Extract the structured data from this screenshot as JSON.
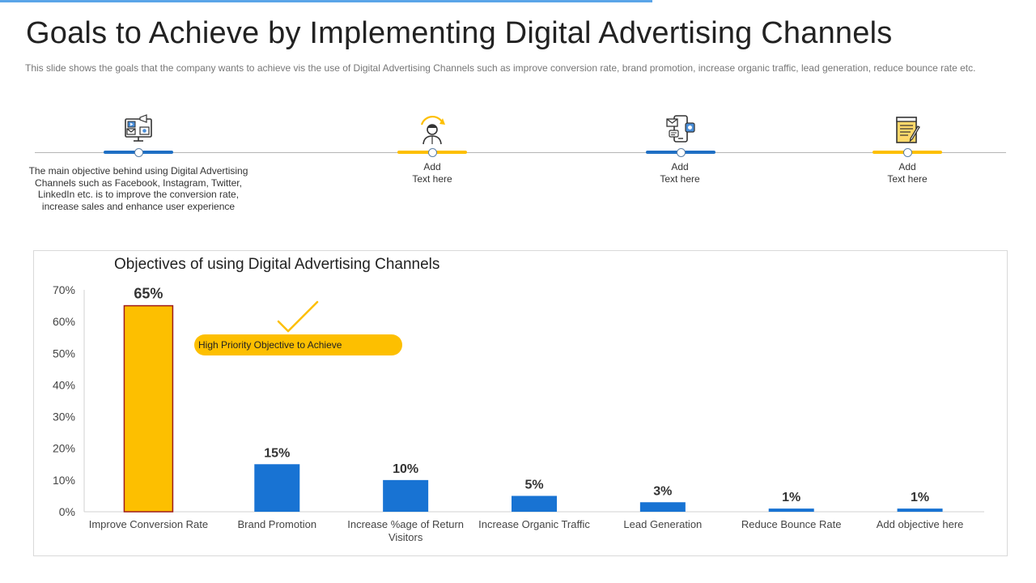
{
  "page": {
    "title": "Goals to Achieve by Implementing Digital Advertising Channels",
    "subtitle": "This slide shows the goals that the company wants to achieve vis the use of Digital Advertising Channels such as improve conversion rate, brand promotion, increase organic traffic, lead generation, reduce bounce rate etc."
  },
  "timeline": {
    "items": [
      {
        "icon": "marketing-channels-icon",
        "accent": "#1f6fc4",
        "lines": [
          "The main objective behind using Digital Advertising",
          "Channels such as Facebook, Instagram, Twitter,",
          "LinkedIn etc. is to improve the conversion rate,",
          "increase sales and enhance user experience"
        ]
      },
      {
        "icon": "person-refresh-icon",
        "accent": "#fdbf00",
        "lines": [
          "Add",
          "Text here"
        ]
      },
      {
        "icon": "mobile-message-icon",
        "accent": "#1f6fc4",
        "lines": [
          "Add",
          "Text here"
        ]
      },
      {
        "icon": "notepad-pen-icon",
        "accent": "#fdbf00",
        "lines": [
          "Add",
          "Text here"
        ]
      }
    ]
  },
  "callout": {
    "label": "High Priority Objective to Achieve"
  },
  "colors": {
    "highlight": "#fdbf00",
    "bar": "#1873d3",
    "outline": "#9e1b1b"
  },
  "chart_data": {
    "type": "bar",
    "title": "Objectives of using Digital Advertising Channels",
    "categories": [
      "Improve Conversion Rate",
      "Brand Promotion",
      "Increase %age of Return Visitors",
      "Increase Organic Traffic",
      "Lead Generation",
      "Reduce Bounce Rate",
      "Add objective here"
    ],
    "category_label_lines": [
      [
        "Improve Conversion Rate"
      ],
      [
        "Brand Promotion"
      ],
      [
        "Increase %age of Return",
        "Visitors"
      ],
      [
        "Increase Organic Traffic"
      ],
      [
        "Lead Generation"
      ],
      [
        "Reduce Bounce Rate"
      ],
      [
        "Add objective here"
      ]
    ],
    "values": [
      65,
      15,
      10,
      5,
      3,
      1,
      1
    ],
    "data_labels": [
      "65%",
      "15%",
      "10%",
      "5%",
      "3%",
      "1%",
      "1%"
    ],
    "y_ticks": [
      0,
      10,
      20,
      30,
      40,
      50,
      60,
      70
    ],
    "y_tick_labels": [
      "0%",
      "10%",
      "20%",
      "30%",
      "40%",
      "50%",
      "60%",
      "70%"
    ],
    "ylim": [
      0,
      70
    ],
    "highlight_index": 0,
    "grid": false,
    "xlabel": "",
    "ylabel": ""
  }
}
